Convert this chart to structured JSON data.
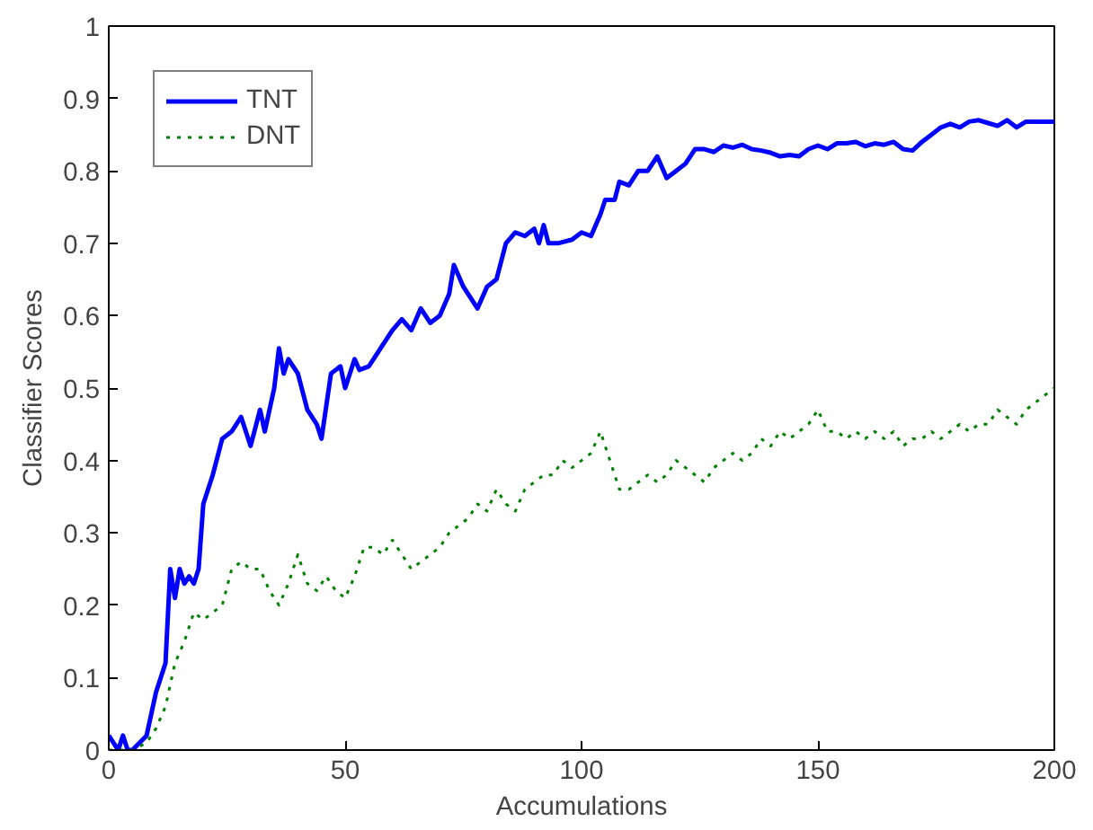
{
  "chart_data": {
    "type": "line",
    "xlabel": "Accumulations",
    "ylabel": "Classifier Scores",
    "xlim": [
      0,
      200
    ],
    "ylim": [
      0,
      1
    ],
    "xticks": [
      0,
      50,
      100,
      150,
      200
    ],
    "yticks": [
      0,
      0.1,
      0.2,
      0.3,
      0.4,
      0.5,
      0.6,
      0.7,
      0.8,
      0.9,
      1
    ],
    "grid": false,
    "legend": "top left",
    "marker": "none",
    "series": [
      {
        "name": "TNT",
        "color": "#0000ff",
        "line_style": "solid",
        "x": [
          0,
          2,
          3,
          4,
          5,
          8,
          10,
          12,
          13,
          14,
          15,
          16,
          17,
          18,
          19,
          20,
          22,
          24,
          26,
          28,
          30,
          32,
          33,
          35,
          36,
          37,
          38,
          40,
          42,
          44,
          45,
          47,
          49,
          50,
          52,
          53,
          55,
          58,
          60,
          62,
          64,
          66,
          68,
          70,
          72,
          73,
          75,
          77,
          78,
          80,
          82,
          84,
          86,
          88,
          90,
          91,
          92,
          93,
          95,
          98,
          100,
          102,
          104,
          105,
          107,
          108,
          110,
          112,
          114,
          116,
          118,
          120,
          122,
          124,
          126,
          128,
          130,
          132,
          134,
          136,
          138,
          140,
          142,
          144,
          146,
          148,
          150,
          152,
          154,
          156,
          158,
          160,
          162,
          164,
          166,
          168,
          170,
          172,
          174,
          176,
          178,
          180,
          182,
          184,
          186,
          188,
          190,
          192,
          194,
          196,
          200
        ],
        "values": [
          0.02,
          0,
          0.02,
          0,
          0,
          0.02,
          0.08,
          0.12,
          0.25,
          0.21,
          0.25,
          0.23,
          0.24,
          0.23,
          0.25,
          0.34,
          0.38,
          0.43,
          0.44,
          0.46,
          0.42,
          0.47,
          0.44,
          0.5,
          0.555,
          0.52,
          0.54,
          0.52,
          0.47,
          0.45,
          0.43,
          0.52,
          0.53,
          0.5,
          0.54,
          0.525,
          0.53,
          0.56,
          0.58,
          0.595,
          0.58,
          0.61,
          0.59,
          0.6,
          0.63,
          0.67,
          0.64,
          0.62,
          0.61,
          0.64,
          0.65,
          0.7,
          0.715,
          0.71,
          0.72,
          0.7,
          0.725,
          0.7,
          0.7,
          0.705,
          0.715,
          0.71,
          0.74,
          0.76,
          0.76,
          0.785,
          0.78,
          0.8,
          0.8,
          0.82,
          0.79,
          0.8,
          0.81,
          0.83,
          0.83,
          0.826,
          0.835,
          0.832,
          0.836,
          0.83,
          0.828,
          0.825,
          0.82,
          0.822,
          0.82,
          0.83,
          0.835,
          0.83,
          0.838,
          0.838,
          0.84,
          0.834,
          0.838,
          0.836,
          0.84,
          0.83,
          0.828,
          0.84,
          0.85,
          0.86,
          0.865,
          0.86,
          0.868,
          0.87,
          0.866,
          0.862,
          0.87,
          0.86,
          0.868,
          0.868,
          0.868
        ]
      },
      {
        "name": "DNT",
        "color": "#008000",
        "line_style": "dotted",
        "x": [
          0,
          5,
          8,
          10,
          12,
          14,
          16,
          18,
          20,
          22,
          24,
          26,
          28,
          30,
          32,
          34,
          36,
          38,
          40,
          42,
          44,
          46,
          48,
          50,
          52,
          54,
          56,
          58,
          60,
          62,
          64,
          66,
          68,
          70,
          72,
          74,
          76,
          78,
          80,
          82,
          84,
          86,
          88,
          90,
          92,
          94,
          96,
          98,
          100,
          102,
          104,
          106,
          108,
          110,
          112,
          114,
          116,
          118,
          120,
          122,
          124,
          126,
          128,
          130,
          132,
          134,
          136,
          138,
          140,
          142,
          144,
          146,
          148,
          150,
          152,
          154,
          156,
          158,
          160,
          162,
          164,
          166,
          168,
          170,
          172,
          174,
          176,
          178,
          180,
          182,
          184,
          186,
          188,
          190,
          192,
          194,
          196,
          198,
          200
        ],
        "values": [
          0,
          0,
          0.01,
          0.03,
          0.06,
          0.12,
          0.15,
          0.19,
          0.18,
          0.19,
          0.2,
          0.25,
          0.26,
          0.25,
          0.25,
          0.22,
          0.2,
          0.23,
          0.27,
          0.23,
          0.22,
          0.24,
          0.22,
          0.21,
          0.24,
          0.28,
          0.28,
          0.27,
          0.29,
          0.27,
          0.25,
          0.26,
          0.27,
          0.28,
          0.3,
          0.31,
          0.32,
          0.34,
          0.33,
          0.36,
          0.34,
          0.33,
          0.36,
          0.37,
          0.38,
          0.38,
          0.4,
          0.39,
          0.4,
          0.41,
          0.44,
          0.4,
          0.36,
          0.36,
          0.37,
          0.38,
          0.37,
          0.38,
          0.4,
          0.39,
          0.38,
          0.37,
          0.39,
          0.4,
          0.41,
          0.4,
          0.41,
          0.43,
          0.42,
          0.44,
          0.43,
          0.44,
          0.45,
          0.47,
          0.44,
          0.44,
          0.43,
          0.44,
          0.43,
          0.44,
          0.43,
          0.44,
          0.42,
          0.43,
          0.43,
          0.44,
          0.43,
          0.44,
          0.45,
          0.44,
          0.45,
          0.45,
          0.47,
          0.46,
          0.45,
          0.47,
          0.48,
          0.49,
          0.5
        ]
      }
    ]
  }
}
